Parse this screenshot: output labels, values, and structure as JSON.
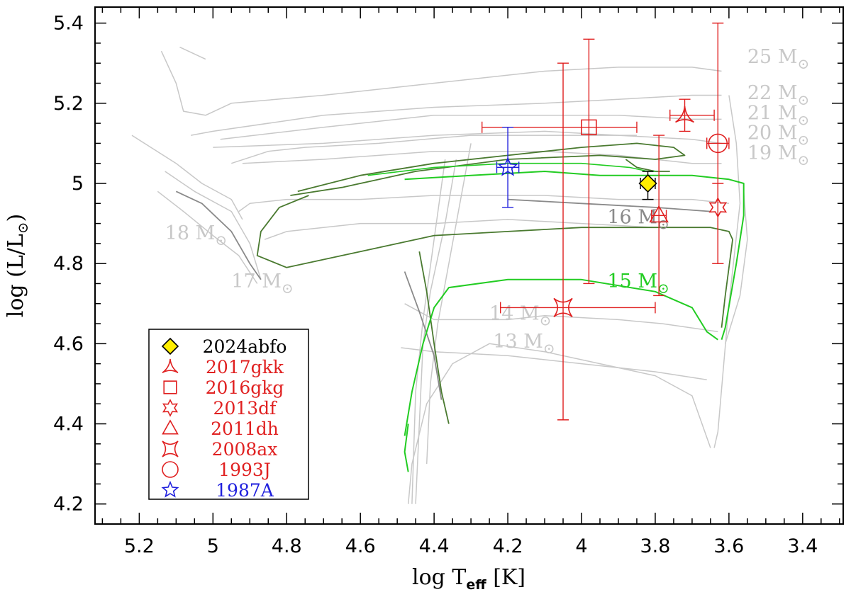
{
  "chart_data": {
    "type": "scatter",
    "xlabel": {
      "main": "log T",
      "sub": "eff",
      "tail": "[K]"
    },
    "ylabel": {
      "main": "log (L/L",
      "sun": "⊙",
      "tail": ")"
    },
    "xlim": [
      5.32,
      3.29
    ],
    "ylim": [
      4.15,
      5.44
    ],
    "x_ticks": [
      5.2,
      5,
      4.8,
      4.6,
      4.4,
      4.2,
      4,
      3.8,
      3.6,
      3.4
    ],
    "x_tick_labels": [
      "5.2",
      "5",
      "4.8",
      "4.6",
      "4.4",
      "4.2",
      "4",
      "3.8",
      "3.6",
      "3.4"
    ],
    "y_ticks": [
      4.2,
      4.4,
      4.6,
      4.8,
      5,
      5.2,
      5.4
    ],
    "y_tick_labels": [
      "4.2",
      "4.4",
      "4.6",
      "4.8",
      "5",
      "5.2",
      "5.4"
    ],
    "colors": {
      "track": "#c8c8c8",
      "track_dark": "#8a8a8a",
      "green": "#22cc22",
      "dark_green": "#4a7a30",
      "red": "#e02020",
      "blue": "#2020dd",
      "yellow": "#ffee00"
    },
    "track_labels": [
      {
        "text": "25 M",
        "x": 3.55,
        "y": 5.3,
        "color": "#c8c8c8"
      },
      {
        "text": "22 M",
        "x": 3.55,
        "y": 5.21,
        "color": "#c8c8c8"
      },
      {
        "text": "21 M",
        "x": 3.55,
        "y": 5.16,
        "color": "#c8c8c8"
      },
      {
        "text": "20 M",
        "x": 3.55,
        "y": 5.11,
        "color": "#c8c8c8"
      },
      {
        "text": "19 M",
        "x": 3.55,
        "y": 5.06,
        "color": "#c8c8c8"
      },
      {
        "text": "18 M",
        "x": 5.13,
        "y": 4.86,
        "color": "#c8c8c8"
      },
      {
        "text": "17 M",
        "x": 4.95,
        "y": 4.74,
        "color": "#c8c8c8"
      },
      {
        "text": "16 M",
        "x": 3.93,
        "y": 4.9,
        "color": "#8a8a8a"
      },
      {
        "text": "15 M",
        "x": 3.93,
        "y": 4.74,
        "color": "#22cc22"
      },
      {
        "text": "14 M",
        "x": 4.25,
        "y": 4.66,
        "color": "#c8c8c8"
      },
      {
        "text": "13 M",
        "x": 4.24,
        "y": 4.59,
        "color": "#c8c8c8"
      }
    ],
    "sun_symbol": "⊙",
    "series": [
      {
        "name": "2024abfo",
        "marker": "diamond",
        "color": "#000000",
        "fill": "#ffee00",
        "x": 3.82,
        "y": 5.0,
        "xerr": [
          0.02,
          0.02
        ],
        "yerr": [
          0.04,
          0.03
        ]
      },
      {
        "name": "2017gkk",
        "marker": "tri-arrow",
        "color": "#e02020",
        "x": 3.72,
        "y": 5.17,
        "xerr": [
          0.04,
          0.08
        ],
        "yerr": [
          0.04,
          0.04
        ]
      },
      {
        "name": "2016gkg",
        "marker": "square",
        "color": "#e02020",
        "x": 3.98,
        "y": 5.14,
        "xerr": [
          0.29,
          0.13
        ],
        "yerr": [
          0.39,
          0.22
        ]
      },
      {
        "name": "2013df",
        "marker": "star6",
        "color": "#e02020",
        "x": 3.63,
        "y": 4.94,
        "xerr": [
          0,
          0
        ],
        "yerr": [
          0.14,
          0.06
        ]
      },
      {
        "name": "2011dh",
        "marker": "triangle",
        "color": "#e02020",
        "x": 3.79,
        "y": 4.92,
        "xerr": [
          0.02,
          0.02
        ],
        "yerr": [
          0.2,
          0.2
        ]
      },
      {
        "name": "2008ax",
        "marker": "bowtie",
        "color": "#e02020",
        "x": 4.05,
        "y": 4.69,
        "xerr": [
          0.17,
          0.25
        ],
        "yerr": [
          0.28,
          0.61
        ]
      },
      {
        "name": "1993J",
        "marker": "circle",
        "color": "#e02020",
        "x": 3.63,
        "y": 5.1,
        "xerr": [
          0.03,
          0.03
        ],
        "yerr": [
          0.3,
          0.3
        ]
      },
      {
        "name": "1987A",
        "marker": "star5",
        "color": "#2020dd",
        "x": 4.2,
        "y": 5.04,
        "xerr": [
          0.03,
          0.03
        ],
        "yerr": [
          0.1,
          0.1
        ]
      }
    ],
    "legend": {
      "placement": "bottom-left",
      "entries": [
        "2024abfo",
        "2017gkk",
        "2016gkg",
        "2013df",
        "2011dh",
        "2008ax",
        "1993J",
        "1987A"
      ]
    }
  }
}
